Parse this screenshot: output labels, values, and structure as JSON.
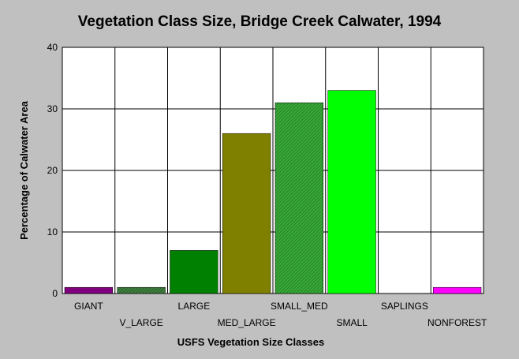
{
  "chart_data": {
    "type": "bar",
    "title": "Vegetation Class Size, Bridge Creek Calwater, 1994",
    "xlabel": "USFS Vegetation Size Classes",
    "ylabel": "Percentage of Calwater Area",
    "ylim": [
      0,
      40
    ],
    "yticks": [
      "0",
      "10",
      "20",
      "30",
      "40"
    ],
    "ytick_values": [
      0,
      10,
      20,
      30,
      40
    ],
    "grid": true,
    "categories": [
      "GIANT",
      "V_LARGE",
      "LARGE",
      "MED_LARGE",
      "SMALL_MED",
      "SMALL",
      "SAPLINGS",
      "NONFOREST"
    ],
    "values": [
      1,
      1,
      7,
      26,
      31,
      33,
      0,
      1
    ],
    "colors": [
      "#800080",
      "#2e7d32",
      "#008000",
      "#808000",
      "#2e9e2e",
      "#00ff00",
      "#c0c0c0",
      "#ff00ff"
    ],
    "patterns": [
      "solid",
      "hatch",
      "solid",
      "solid",
      "hatch",
      "solid",
      "solid",
      "solid"
    ]
  }
}
